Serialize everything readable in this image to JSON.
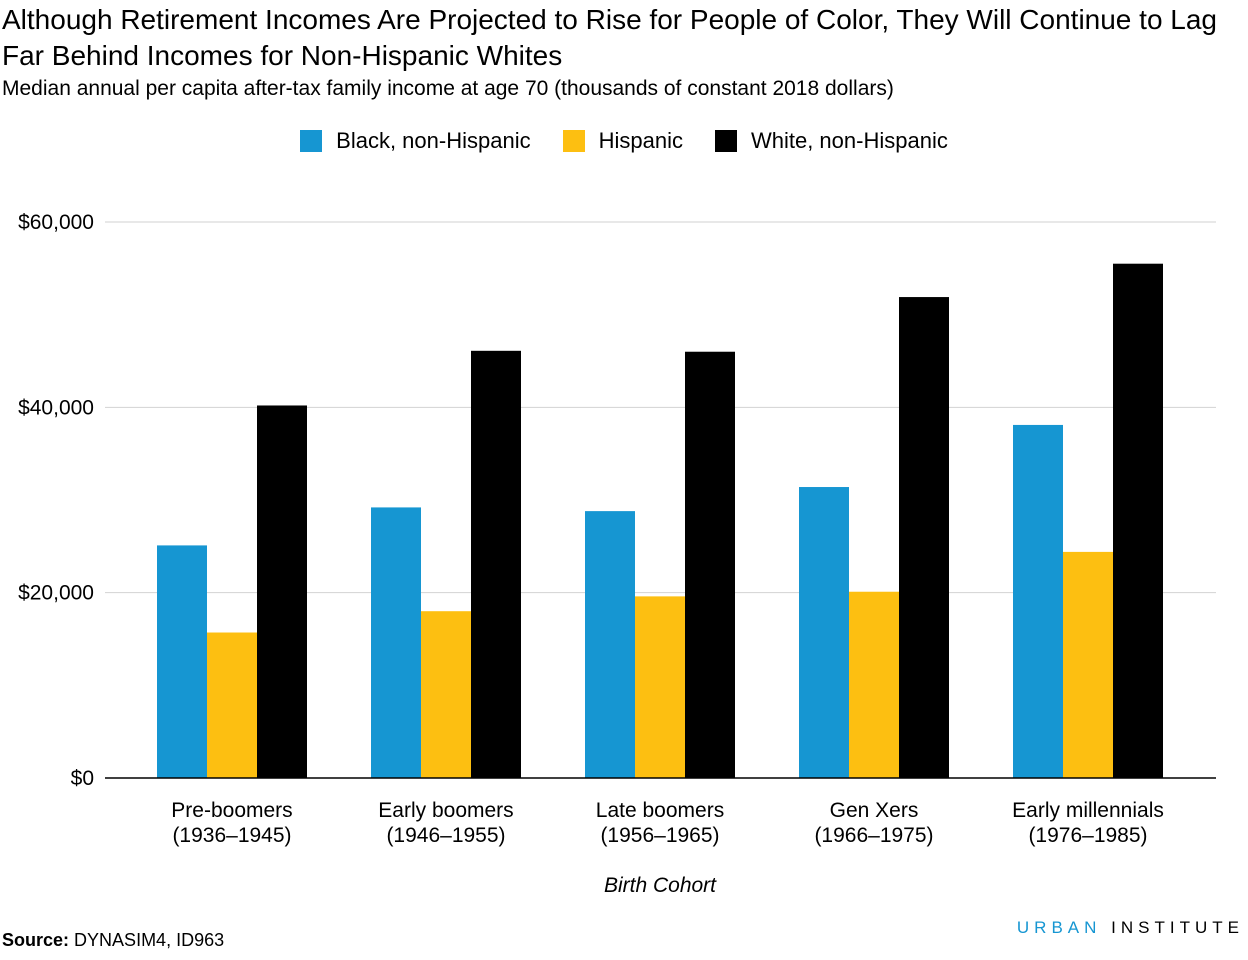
{
  "chart_data": {
    "type": "bar",
    "title": "Although Retirement Incomes Are Projected to Rise for People of Color, They Will Continue to Lag Far Behind Incomes for Non-Hispanic Whites",
    "subtitle": "Median annual per capita after-tax family income at age 70 (thousands of constant 2018 dollars)",
    "xlabel": "Birth Cohort",
    "ylabel": "",
    "ylim": [
      0,
      60000
    ],
    "yticks": [
      0,
      20000,
      40000,
      60000
    ],
    "ytick_labels": [
      "$0",
      "$20,000",
      "$40,000",
      "$60,000"
    ],
    "grid": true,
    "legend_position": "top-center",
    "categories": [
      [
        "Pre-boomers",
        "(1936–1945)"
      ],
      [
        "Early boomers",
        "(1946–1955)"
      ],
      [
        "Late boomers",
        "(1956–1965)"
      ],
      [
        "Gen Xers",
        "(1966–1975)"
      ],
      [
        "Early millennials",
        "(1976–1985)"
      ]
    ],
    "series": [
      {
        "name": "Black, non-Hispanic",
        "color": "#1696d2",
        "values": [
          25100,
          29200,
          28800,
          31400,
          38100
        ]
      },
      {
        "name": "Hispanic",
        "color": "#fdbf11",
        "values": [
          15700,
          18000,
          19600,
          20100,
          24400
        ]
      },
      {
        "name": "White, non-Hispanic",
        "color": "#000000",
        "values": [
          40200,
          46100,
          46000,
          51900,
          55500
        ]
      }
    ]
  },
  "source": {
    "label": "Source:",
    "text": "DYNASIM4, ID963"
  },
  "brand": {
    "part1": "URBAN",
    "part2": "INSTITUTE"
  }
}
